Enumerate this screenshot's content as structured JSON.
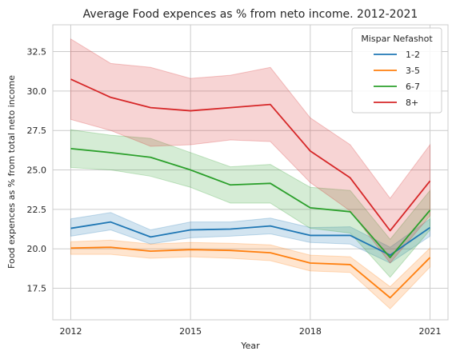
{
  "chart_data": {
    "type": "line",
    "title": "Average Food expences as % from neto income. 2012-2021",
    "xlabel": "Year",
    "ylabel": "Food expences as % from total neto income",
    "x": [
      2012,
      2013,
      2014,
      2015,
      2016,
      2017,
      2018,
      2019,
      2020,
      2021
    ],
    "xticks": [
      2012,
      2015,
      2018,
      2021
    ],
    "xtick_labels": [
      "2012",
      "2015",
      "2018",
      "2021"
    ],
    "yticks": [
      17.5,
      20.0,
      22.5,
      25.0,
      27.5,
      30.0,
      32.5
    ],
    "ytick_labels": [
      "17.5",
      "20.0",
      "22.5",
      "25.0",
      "27.5",
      "30.0",
      "32.5"
    ],
    "xlim": [
      2011.55,
      2021.45
    ],
    "ylim": [
      15.5,
      34.2
    ],
    "grid": true,
    "legend": {
      "title": "Mispar Nefashot",
      "placement": "top-right"
    },
    "series": [
      {
        "name": "1-2",
        "color": "#1f77b4",
        "values": [
          21.3,
          21.7,
          20.75,
          21.2,
          21.25,
          21.45,
          20.85,
          20.85,
          19.6,
          21.35
        ],
        "lower": [
          20.8,
          21.2,
          20.3,
          20.7,
          20.8,
          20.95,
          20.4,
          20.3,
          19.1,
          20.8
        ],
        "upper": [
          21.9,
          22.3,
          21.2,
          21.7,
          21.7,
          21.95,
          21.35,
          21.4,
          20.1,
          21.9
        ]
      },
      {
        "name": "3-5",
        "color": "#ff7f0e",
        "values": [
          20.05,
          20.1,
          19.85,
          19.95,
          19.9,
          19.75,
          19.1,
          19.0,
          16.9,
          19.45
        ],
        "lower": [
          19.65,
          19.65,
          19.4,
          19.5,
          19.4,
          19.25,
          18.6,
          18.5,
          16.2,
          18.85
        ],
        "upper": [
          20.45,
          20.55,
          20.3,
          20.4,
          20.35,
          20.25,
          19.6,
          19.5,
          17.6,
          20.05
        ]
      },
      {
        "name": "6-7",
        "color": "#2ca02c",
        "values": [
          26.35,
          26.1,
          25.8,
          25.0,
          24.05,
          24.15,
          22.6,
          22.35,
          19.45,
          22.45
        ],
        "lower": [
          25.15,
          25.0,
          24.6,
          23.9,
          22.9,
          22.9,
          21.3,
          21.0,
          18.2,
          21.2
        ],
        "upper": [
          27.55,
          27.2,
          27.0,
          26.1,
          25.2,
          25.35,
          23.9,
          23.7,
          20.6,
          23.7
        ]
      },
      {
        "name": "8+",
        "color": "#d62728",
        "values": [
          30.75,
          29.6,
          28.95,
          28.75,
          28.95,
          29.15,
          26.2,
          24.5,
          21.15,
          24.3
        ],
        "lower": [
          28.2,
          27.5,
          26.5,
          26.6,
          26.9,
          26.8,
          24.2,
          22.4,
          19.1,
          22.1
        ],
        "upper": [
          33.3,
          31.75,
          31.5,
          30.8,
          31.0,
          31.5,
          28.3,
          26.6,
          23.2,
          26.6
        ]
      }
    ]
  }
}
